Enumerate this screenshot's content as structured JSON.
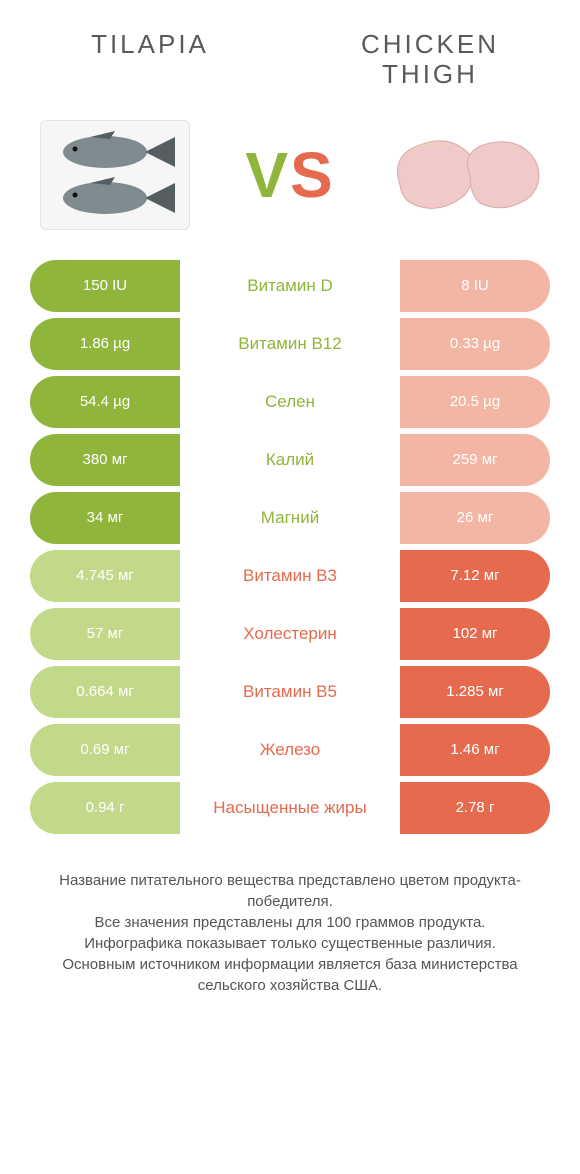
{
  "colors": {
    "green": "#8fb53b",
    "orange": "#e66a4e",
    "pale_green": "#c3d98a",
    "pale_orange": "#f3b6a5",
    "fish_body": "#7f8b8f",
    "fish_dark": "#555e61",
    "meat_pink": "#f0c9c9",
    "meat_skin": "#e8dba8"
  },
  "titles": {
    "left": "TILAPIA",
    "right": "CHICKEN THIGH"
  },
  "vs_text": "VS",
  "rows": [
    {
      "left": "150 IU",
      "mid": "Витамин D",
      "right": "8 IU",
      "winner": "left"
    },
    {
      "left": "1.86 µg",
      "mid": "Витамин B12",
      "right": "0.33 µg",
      "winner": "left"
    },
    {
      "left": "54.4 µg",
      "mid": "Селен",
      "right": "20.5 µg",
      "winner": "left"
    },
    {
      "left": "380 мг",
      "mid": "Калий",
      "right": "259 мг",
      "winner": "left"
    },
    {
      "left": "34 мг",
      "mid": "Магний",
      "right": "26 мг",
      "winner": "left"
    },
    {
      "left": "4.745 мг",
      "mid": "Витамин B3",
      "right": "7.12 мг",
      "winner": "right"
    },
    {
      "left": "57 мг",
      "mid": "Холестерин",
      "right": "102 мг",
      "winner": "right"
    },
    {
      "left": "0.664 мг",
      "mid": "Витамин B5",
      "right": "1.285 мг",
      "winner": "right"
    },
    {
      "left": "0.69 мг",
      "mid": "Железо",
      "right": "1.46 мг",
      "winner": "right"
    },
    {
      "left": "0.94 г",
      "mid": "Насыщенные жиры",
      "right": "2.78 г",
      "winner": "right"
    }
  ],
  "footer_lines": [
    "Название питательного вещества представлено цветом продукта-победителя.",
    "Все значения представлены для 100 граммов продукта.",
    "Инфографика показывает только существенные различия.",
    "Основным источником информации является база министерства сельского хозяйства США."
  ]
}
